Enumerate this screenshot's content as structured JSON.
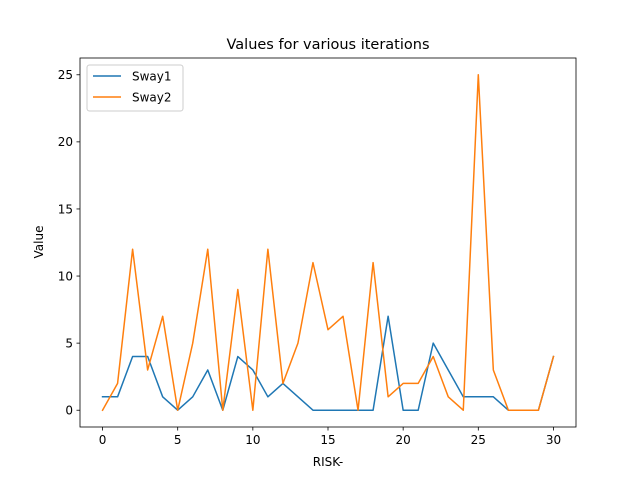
{
  "chart_data": {
    "type": "line",
    "title": "Values for various iterations",
    "xlabel": "RISK-",
    "ylabel": "Value",
    "xlim": [
      -1.5,
      31.5
    ],
    "ylim": [
      -1.25,
      26.25
    ],
    "xticks": [
      0,
      5,
      10,
      15,
      20,
      25,
      30
    ],
    "yticks": [
      0,
      5,
      10,
      15,
      20,
      25
    ],
    "grid": false,
    "legend_position": "upper left",
    "x": [
      0,
      1,
      2,
      3,
      4,
      5,
      6,
      7,
      8,
      9,
      10,
      11,
      12,
      13,
      14,
      15,
      16,
      17,
      18,
      19,
      20,
      21,
      22,
      23,
      24,
      25,
      26,
      27,
      28,
      29,
      30
    ],
    "series": [
      {
        "name": "Sway1",
        "color": "#1f77b4",
        "values": [
          1,
          1,
          4,
          4,
          1,
          0,
          1,
          3,
          0,
          4,
          3,
          1,
          2,
          1,
          0,
          0,
          0,
          0,
          0,
          7,
          0,
          0,
          5,
          3,
          1,
          1,
          1,
          0,
          0,
          0,
          4
        ]
      },
      {
        "name": "Sway2",
        "color": "#ff7f0e",
        "values": [
          0,
          2,
          12,
          3,
          7,
          0,
          5,
          12,
          0,
          9,
          0,
          12,
          2,
          5,
          11,
          6,
          7,
          0,
          11,
          1,
          2,
          2,
          4,
          1,
          0,
          25,
          3,
          0,
          0,
          0,
          4
        ]
      }
    ]
  }
}
